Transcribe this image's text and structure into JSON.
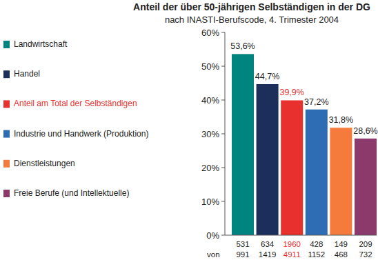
{
  "chart_data": {
    "type": "bar",
    "title": "Anteil der über 50-jährigen Selbständigen in der DG",
    "subtitle": "nach INASTI-Berufscode, 4. Trimester 2004",
    "categories": [
      "Landwirtschaft",
      "Handel",
      "Anteil am Total der Selbständigen",
      "Industrie und Handwerk (Produktion)",
      "Dienstleistungen",
      "Freie Berufe (und Intellektuelle)"
    ],
    "values": [
      53.6,
      44.7,
      39.9,
      37.2,
      31.8,
      28.6
    ],
    "value_labels": [
      "53,6%",
      "44,7%",
      "39,9%",
      "37,2%",
      "31,8%",
      "28,6%"
    ],
    "colors": [
      "#00847f",
      "#1c2f5a",
      "#e8312f",
      "#2e6db4",
      "#f47b3c",
      "#8b3a6b"
    ],
    "counts": [
      531,
      634,
      1960,
      428,
      149,
      209
    ],
    "totals": [
      991,
      1419,
      4911,
      1152,
      468,
      732
    ],
    "totals_prefix": "von",
    "ylim": [
      0,
      60
    ],
    "yticks": [
      {
        "value": 0,
        "label": "0%"
      },
      {
        "value": 10,
        "label": "10%"
      },
      {
        "value": 20,
        "label": "20%"
      },
      {
        "value": 30,
        "label": "30%"
      },
      {
        "value": 40,
        "label": "40%"
      },
      {
        "value": 50,
        "label": "50%"
      },
      {
        "value": 60,
        "label": "60%"
      }
    ],
    "grid": false,
    "data_labels": true,
    "legend": "left"
  }
}
